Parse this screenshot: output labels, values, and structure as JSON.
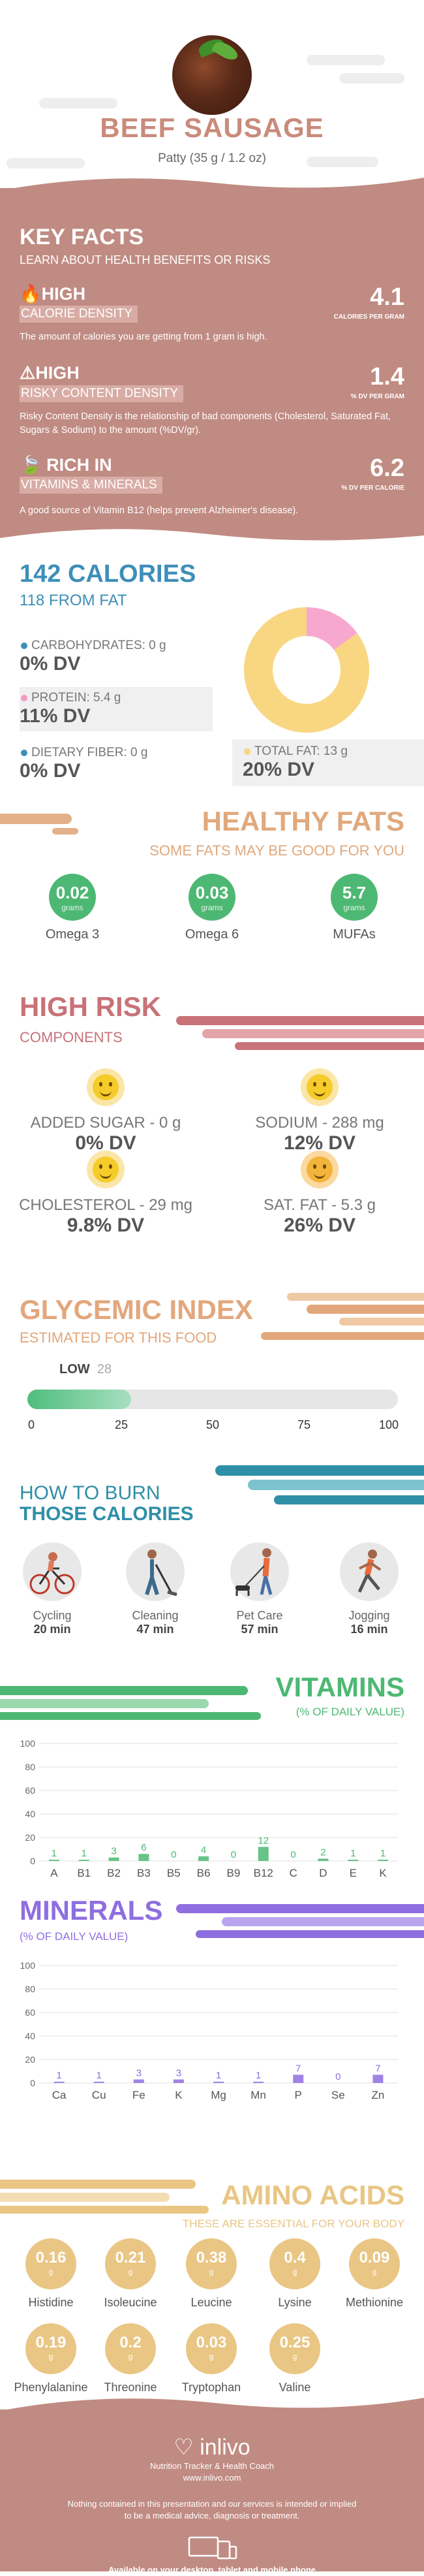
{
  "header": {
    "title": "BEEF SAUSAGE",
    "subtitle": "Patty (35 g / 1.2 oz)",
    "photo_icon": "beef-sausage-photo"
  },
  "key_facts": {
    "title": "KEY FACTS",
    "subtitle": "LEARN ABOUT HEALTH BENEFITS OR RISKS",
    "items": [
      {
        "level": "HIGH",
        "name": "CALORIE DENSITY",
        "value": "4.1",
        "unit": "CALORIES PER GRAM",
        "icon": "flame-icon",
        "desc": "The amount of calories you are getting from 1 gram is high."
      },
      {
        "level": "HIGH",
        "name": "RISKY CONTENT DENSITY",
        "value": "1.4",
        "unit": "% DV PER GRAM",
        "icon": "warning-icon",
        "desc": "Risky Content Density is the relationship of bad components (Cholesterol, Saturated Fat, Sugars & Sodium) to the amount (%DV/gr)."
      },
      {
        "level": "RICH IN",
        "name": "VITAMINS & MINERALS",
        "value": "6.2",
        "unit": "% DV PER CALORIE",
        "icon": "leaf-icon",
        "desc": "A good source of Vitamin B12 (helps prevent Alzheimer's disease)."
      }
    ]
  },
  "calories": {
    "title": "142 CALORIES",
    "from_fat": "118 FROM FAT",
    "macros": [
      {
        "label": "CARBOHYDRATES: 0 g",
        "dv": "0% DV",
        "color": "#3d8fb8"
      },
      {
        "label": "PROTEIN: 5.4 g",
        "dv": "11% DV",
        "color": "#f49ac1"
      },
      {
        "label": "DIETARY FIBER: 0 g",
        "dv": "0% DV",
        "color": "#3d8fb8"
      },
      {
        "label": "TOTAL FAT: 13 g",
        "dv": "20% DV",
        "color": "#f9d782"
      }
    ],
    "donut": [
      {
        "name": "protein",
        "value": 15,
        "color": "#f7a8cf"
      },
      {
        "name": "fat",
        "value": 85,
        "color": "#f9d782"
      }
    ]
  },
  "healthy_fats": {
    "title": "HEALTHY FATS",
    "subtitle": "SOME FATS MAY BE GOOD FOR YOU",
    "items": [
      {
        "value": "0.02",
        "unit": "grams",
        "name": "Omega 3"
      },
      {
        "value": "0.03",
        "unit": "grams",
        "name": "Omega 6"
      },
      {
        "value": "5.7",
        "unit": "grams",
        "name": "MUFAs"
      }
    ]
  },
  "high_risk": {
    "title": "HIGH RISK",
    "subtitle": "COMPONENTS",
    "items": [
      {
        "label": "ADDED SUGAR - 0 g",
        "dv": "0% DV"
      },
      {
        "label": "SODIUM - 288 mg",
        "dv": "12% DV"
      },
      {
        "label": "CHOLESTEROL - 29 mg",
        "dv": "9.8% DV"
      },
      {
        "label": "SAT. FAT - 5.3 g",
        "dv": "26% DV"
      }
    ]
  },
  "glycemic": {
    "title": "GLYCEMIC INDEX",
    "subtitle": "ESTIMATED FOR THIS FOOD",
    "level": "LOW",
    "value": "28",
    "value_num": 28,
    "ticks": [
      "0",
      "25",
      "50",
      "75",
      "100"
    ]
  },
  "burn": {
    "title_line1": "HOW TO BURN",
    "title_line2": "THOSE CALORIES",
    "activities": [
      {
        "name": "Cycling",
        "time": "20 min",
        "icon": "cycling-icon"
      },
      {
        "name": "Cleaning",
        "time": "47 min",
        "icon": "cleaning-icon"
      },
      {
        "name": "Pet Care",
        "time": "57 min",
        "icon": "pet-care-icon"
      },
      {
        "name": "Jogging",
        "time": "16 min",
        "icon": "jogging-icon"
      }
    ]
  },
  "vitamins": {
    "title": "VITAMINS",
    "subtitle": "(% OF DAILY VALUE)",
    "color": "#4db873"
  },
  "minerals": {
    "title": "MINERALS",
    "subtitle": "(% OF DAILY VALUE)",
    "color": "#8e6ee0"
  },
  "chart_data": [
    {
      "type": "bar",
      "title": "VITAMINS",
      "categories": [
        "A",
        "B1",
        "B2",
        "B3",
        "B5",
        "B6",
        "B9",
        "B12",
        "C",
        "D",
        "E",
        "K"
      ],
      "values": [
        1,
        1,
        3,
        6,
        0,
        4,
        0,
        12,
        0,
        2,
        1,
        1
      ],
      "y_ticks": [
        "0",
        "20",
        "40",
        "60",
        "80",
        "100"
      ],
      "ylim": [
        0,
        100
      ],
      "grid": true
    },
    {
      "type": "bar",
      "title": "MINERALS",
      "categories": [
        "Ca",
        "Cu",
        "Fe",
        "K",
        "Mg",
        "Mn",
        "P",
        "Se",
        "Zn"
      ],
      "values": [
        1,
        1,
        3,
        3,
        1,
        1,
        7,
        0,
        7
      ],
      "y_ticks": [
        "0",
        "20",
        "40",
        "60",
        "80",
        "100"
      ],
      "ylim": [
        0,
        100
      ],
      "grid": true
    }
  ],
  "amino": {
    "title": "AMINO ACIDS",
    "subtitle": "THESE ARE ESSENTIAL FOR YOUR BODY",
    "unit": "g",
    "items": [
      {
        "value": "0.16",
        "name": "Histidine"
      },
      {
        "value": "0.21",
        "name": "Isoleucine"
      },
      {
        "value": "0.38",
        "name": "Leucine"
      },
      {
        "value": "0.4",
        "name": "Lysine"
      },
      {
        "value": "0.09",
        "name": "Methionine"
      },
      {
        "value": "0.19",
        "name": "Phenylalanine"
      },
      {
        "value": "0.2",
        "name": "Threonine"
      },
      {
        "value": "0.03",
        "name": "Tryptophan"
      },
      {
        "value": "0.25",
        "name": "Valine"
      }
    ]
  },
  "footer": {
    "brand": "inlivo",
    "tagline": "Nutrition Tracker & Health Coach",
    "url": "www.inlivo.com",
    "disclaimer_1": "Nothing contained in this presentation and our services is intended or implied",
    "disclaimer_2": "to be a medical advice, diagnosis or treatment.",
    "available": "Available on your desktop, tablet and mobile phone"
  }
}
